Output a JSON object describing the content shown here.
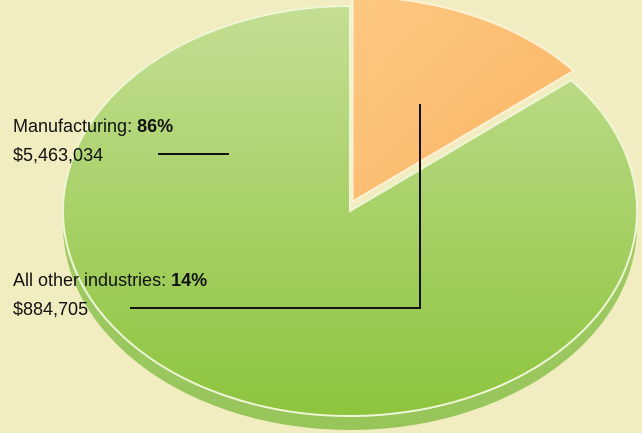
{
  "chart_data": {
    "type": "pie",
    "title": "",
    "slices": [
      {
        "name": "Manufacturing",
        "label": "Manufacturing: ",
        "percent": 86,
        "percent_text": "86%",
        "value": 5463034,
        "value_text": "$5,463,034",
        "color": "#9fd066"
      },
      {
        "name": "All other industries",
        "label": "All other industries: ",
        "percent": 14,
        "percent_text": "14%",
        "value": 884705,
        "value_text": "$884,705",
        "color": "#fcbd74"
      }
    ],
    "style": "3d-exploded",
    "background_color": "#f1edc0"
  }
}
